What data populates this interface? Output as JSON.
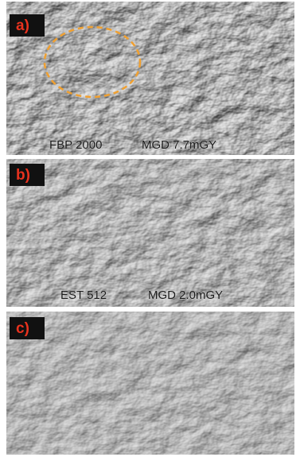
{
  "panels": [
    {
      "label": "a)",
      "captions": [
        "FBP 2000",
        "MGD 7.7mGY"
      ]
    },
    {
      "label": "b)",
      "captions": [
        "EST 512",
        "MGD 2.0mGY"
      ]
    },
    {
      "label": "c)"
    }
  ]
}
